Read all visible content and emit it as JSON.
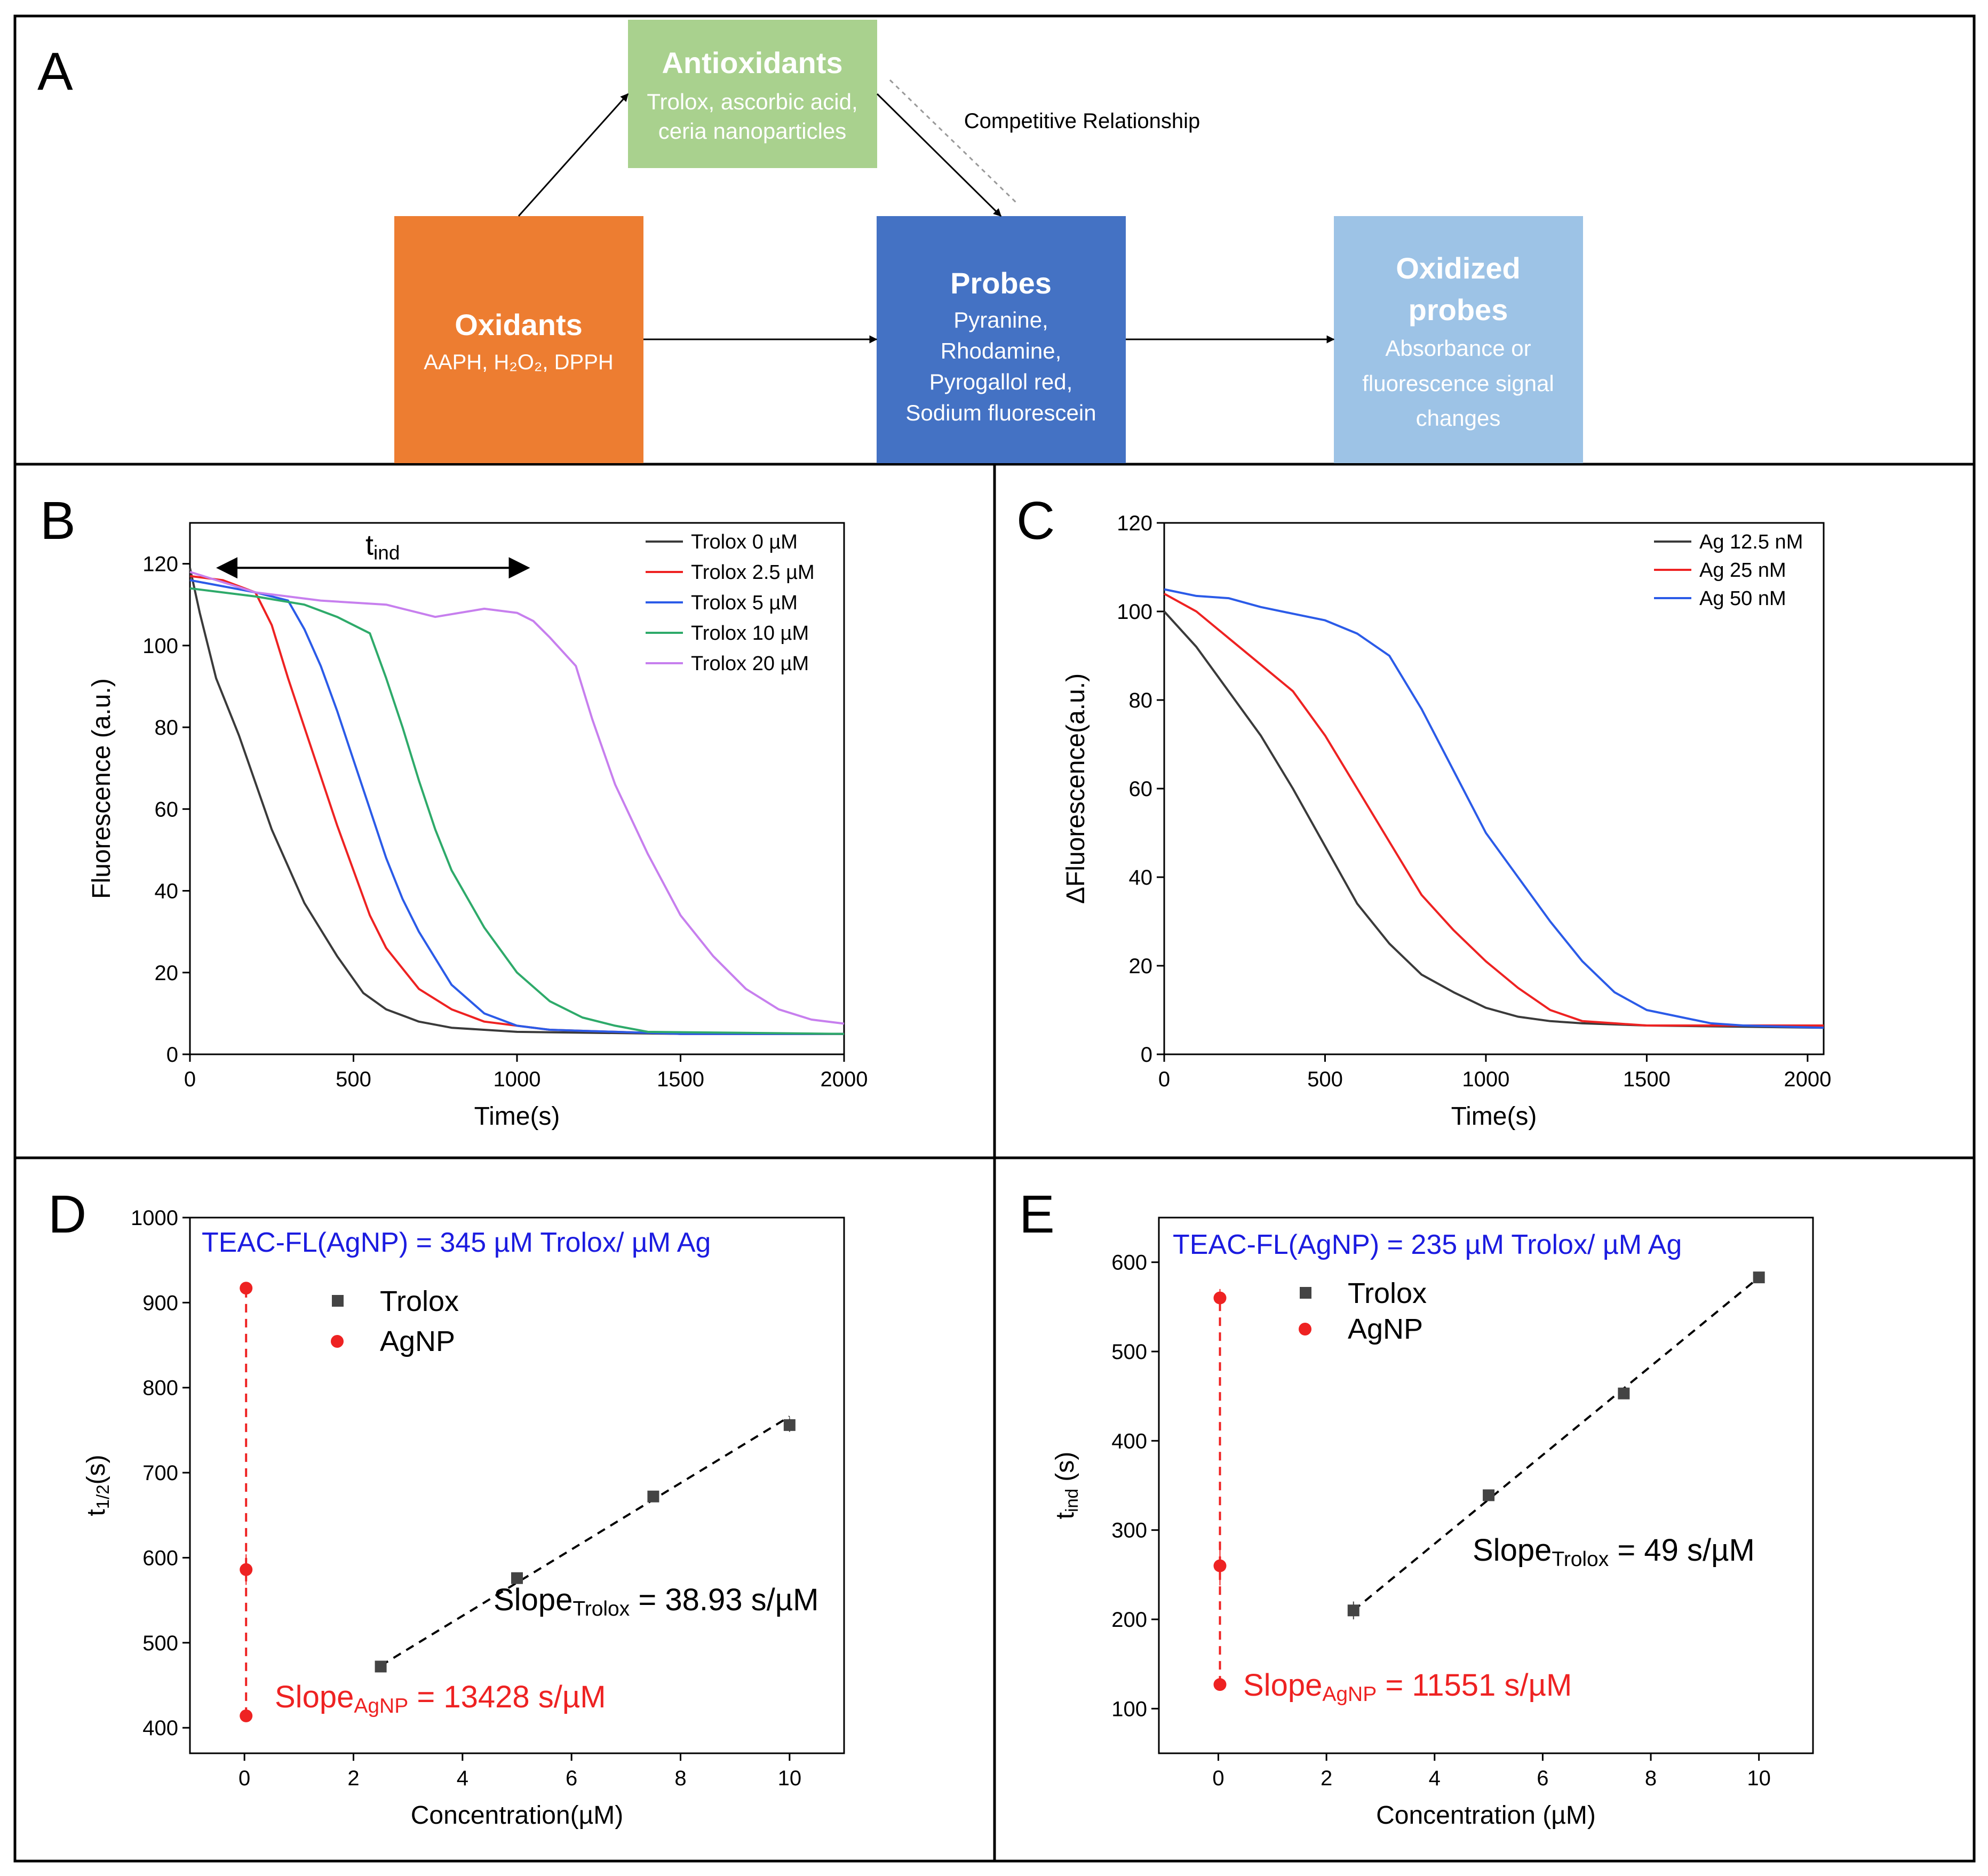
{
  "panel_letters": {
    "A": "A",
    "B": "B",
    "C": "C",
    "D": "D",
    "E": "E"
  },
  "colors": {
    "oxidants": "#ED7D31",
    "probes": "#4472C4",
    "antioxidants": "#A9D18E",
    "oxidized": "#9DC3E6",
    "black": "#3a3a3a",
    "red": "#EE2222",
    "blue": "#2B5BE8",
    "green": "#2EAA6A",
    "purple": "#C77FEE",
    "note_blue": "#1B1BE0"
  },
  "diagram": {
    "antioxidants": {
      "title": "Antioxidants",
      "line1": "Trolox, ascorbic acid,",
      "line2": "ceria nanoparticles"
    },
    "oxidants": {
      "title": "Oxidants",
      "sub": "AAPH, H₂O₂, DPPH"
    },
    "probes": {
      "title": "Probes",
      "line1": "Pyranine,",
      "line2": "Rhodamine,",
      "line3": "Pyrogallol red,",
      "line4": "Sodium fluorescein"
    },
    "oxidized": {
      "title1": "Oxidized",
      "title2": "probes",
      "line1": "Absorbance or",
      "line2": "fluorescence signal",
      "line3": "changes"
    },
    "competitive_label": "Competitive Relationship"
  },
  "chart_data": [
    {
      "id": "B",
      "type": "line",
      "xlabel": "Time(s)",
      "ylabel": "Fluorescence (a.u.)",
      "xlim": [
        0,
        2000
      ],
      "ylim": [
        0,
        130
      ],
      "xticks": [
        0,
        500,
        1000,
        1500,
        2000
      ],
      "yticks": [
        0,
        20,
        40,
        60,
        80,
        100,
        120
      ],
      "annotation": {
        "text": "t",
        "sub": "ind",
        "from": 80,
        "to": 1040,
        "y": 119
      },
      "series": [
        {
          "name": "Trolox 0 µM",
          "color": "#3a3a3a",
          "points": [
            [
              0,
              119
            ],
            [
              30,
              108
            ],
            [
              80,
              92
            ],
            [
              150,
              78
            ],
            [
              250,
              55
            ],
            [
              350,
              37
            ],
            [
              450,
              24
            ],
            [
              530,
              15
            ],
            [
              600,
              11
            ],
            [
              700,
              8
            ],
            [
              800,
              6.5
            ],
            [
              1000,
              5.5
            ],
            [
              1500,
              5
            ],
            [
              2000,
              5
            ]
          ]
        },
        {
          "name": "Trolox 2.5 µM",
          "color": "#EE2222",
          "points": [
            [
              0,
              117
            ],
            [
              100,
              116
            ],
            [
              200,
              113
            ],
            [
              250,
              105
            ],
            [
              300,
              92
            ],
            [
              350,
              80
            ],
            [
              400,
              68
            ],
            [
              450,
              56
            ],
            [
              500,
              45
            ],
            [
              550,
              34
            ],
            [
              600,
              26
            ],
            [
              700,
              16
            ],
            [
              800,
              11
            ],
            [
              900,
              8
            ],
            [
              1000,
              7
            ],
            [
              1100,
              6
            ],
            [
              1500,
              5
            ],
            [
              2000,
              5
            ]
          ]
        },
        {
          "name": "Trolox 5 µM",
          "color": "#2B5BE8",
          "points": [
            [
              0,
              116
            ],
            [
              200,
              113
            ],
            [
              300,
              111
            ],
            [
              350,
              104
            ],
            [
              400,
              95
            ],
            [
              450,
              84
            ],
            [
              500,
              72
            ],
            [
              550,
              60
            ],
            [
              600,
              48
            ],
            [
              650,
              38
            ],
            [
              700,
              30
            ],
            [
              800,
              17
            ],
            [
              900,
              10
            ],
            [
              1000,
              7
            ],
            [
              1100,
              6
            ],
            [
              1500,
              5
            ],
            [
              2000,
              5
            ]
          ]
        },
        {
          "name": "Trolox 10 µM",
          "color": "#2EAA6A",
          "points": [
            [
              0,
              114
            ],
            [
              200,
              112
            ],
            [
              350,
              110
            ],
            [
              450,
              107
            ],
            [
              550,
              103
            ],
            [
              600,
              92
            ],
            [
              650,
              80
            ],
            [
              700,
              67
            ],
            [
              750,
              55
            ],
            [
              800,
              45
            ],
            [
              900,
              31
            ],
            [
              1000,
              20
            ],
            [
              1100,
              13
            ],
            [
              1200,
              9
            ],
            [
              1300,
              7
            ],
            [
              1400,
              5.5
            ],
            [
              2000,
              5
            ]
          ]
        },
        {
          "name": "Trolox 20 µM",
          "color": "#C77FEE",
          "points": [
            [
              0,
              118
            ],
            [
              200,
              113
            ],
            [
              400,
              111
            ],
            [
              600,
              110
            ],
            [
              750,
              107
            ],
            [
              900,
              109
            ],
            [
              1000,
              108
            ],
            [
              1050,
              106
            ],
            [
              1100,
              102
            ],
            [
              1180,
              95
            ],
            [
              1230,
              82
            ],
            [
              1300,
              66
            ],
            [
              1400,
              49
            ],
            [
              1500,
              34
            ],
            [
              1600,
              24
            ],
            [
              1700,
              16
            ],
            [
              1800,
              11
            ],
            [
              1900,
              8.5
            ],
            [
              2000,
              7.5
            ]
          ]
        }
      ]
    },
    {
      "id": "C",
      "type": "line",
      "xlabel": "Time(s)",
      "ylabel": "ΔFluorescence(a.u.)",
      "xlim": [
        0,
        2050
      ],
      "ylim": [
        0,
        120
      ],
      "xticks": [
        0,
        500,
        1000,
        1500,
        2000
      ],
      "yticks": [
        0,
        20,
        40,
        60,
        80,
        100,
        120
      ],
      "series": [
        {
          "name": "Ag 12.5 nM",
          "color": "#3a3a3a",
          "points": [
            [
              0,
              100
            ],
            [
              100,
              92
            ],
            [
              200,
              82
            ],
            [
              300,
              72
            ],
            [
              400,
              60
            ],
            [
              500,
              47
            ],
            [
              600,
              34
            ],
            [
              700,
              25
            ],
            [
              800,
              18
            ],
            [
              900,
              14
            ],
            [
              1000,
              10.5
            ],
            [
              1100,
              8.5
            ],
            [
              1200,
              7.5
            ],
            [
              1300,
              7
            ],
            [
              1500,
              6.5
            ],
            [
              2050,
              6
            ]
          ]
        },
        {
          "name": "Ag 25 nM",
          "color": "#EE2222",
          "points": [
            [
              0,
              104
            ],
            [
              100,
              100
            ],
            [
              200,
              94
            ],
            [
              300,
              88
            ],
            [
              400,
              82
            ],
            [
              500,
              72
            ],
            [
              600,
              60
            ],
            [
              700,
              48
            ],
            [
              800,
              36
            ],
            [
              900,
              28
            ],
            [
              1000,
              21
            ],
            [
              1100,
              15
            ],
            [
              1200,
              10
            ],
            [
              1300,
              7.5
            ],
            [
              1400,
              7
            ],
            [
              1500,
              6.5
            ],
            [
              2050,
              6.5
            ]
          ]
        },
        {
          "name": "Ag 50 nM",
          "color": "#2B5BE8",
          "points": [
            [
              0,
              105
            ],
            [
              100,
              103.5
            ],
            [
              200,
              103
            ],
            [
              300,
              101
            ],
            [
              400,
              99.5
            ],
            [
              500,
              98
            ],
            [
              600,
              95
            ],
            [
              700,
              90
            ],
            [
              800,
              78
            ],
            [
              900,
              64
            ],
            [
              1000,
              50
            ],
            [
              1100,
              40
            ],
            [
              1200,
              30
            ],
            [
              1300,
              21
            ],
            [
              1400,
              14
            ],
            [
              1500,
              10
            ],
            [
              1600,
              8.5
            ],
            [
              1700,
              7
            ],
            [
              1800,
              6.5
            ],
            [
              2050,
              6
            ]
          ]
        }
      ]
    },
    {
      "id": "D",
      "type": "scatter",
      "xlabel": "Concentration(µM)",
      "ylabel": "t",
      "ylabel_sub": "1/2",
      "ylabel_tail": "(s)",
      "xlim": [
        -1,
        11
      ],
      "ylim": [
        370,
        1000
      ],
      "xticks": [
        0,
        2,
        4,
        6,
        8,
        10
      ],
      "yticks": [
        400,
        500,
        600,
        700,
        800,
        900,
        1000
      ],
      "header": "TEAC-FL(AgNP) = 345 µM Trolox/ µM Ag",
      "legend": [
        "Trolox",
        "AgNP"
      ],
      "trolox": {
        "x": [
          2.5,
          5,
          7.5,
          10
        ],
        "y": [
          472,
          576,
          672,
          756
        ],
        "err": [
          6,
          5,
          6,
          8
        ]
      },
      "agnp": {
        "x": [
          0.03,
          0.03,
          0.03
        ],
        "y": [
          414,
          586,
          917
        ],
        "err": [
          6,
          18,
          6
        ]
      },
      "fit": {
        "x0": 2.5,
        "x1": 10,
        "y0": 473,
        "y1": 766
      },
      "slope_trolox": {
        "label": "Slope",
        "sub": "Trolox",
        "tail": " = 38.93 s/µM"
      },
      "slope_agnp": {
        "label": "Slope",
        "sub": "AgNP",
        "tail": " = 13428 s/µM"
      }
    },
    {
      "id": "E",
      "type": "scatter",
      "xlabel": "Concentration (µM)",
      "ylabel": "t",
      "ylabel_sub": "ind",
      "ylabel_tail": " (s)",
      "xlim": [
        -1.1,
        11
      ],
      "ylim": [
        50,
        650
      ],
      "xticks": [
        0,
        2,
        4,
        6,
        8,
        10
      ],
      "yticks": [
        100,
        200,
        300,
        400,
        500,
        600
      ],
      "header": "TEAC-FL(AgNP) = 235 µM Trolox/ µM Ag",
      "legend": [
        "Trolox",
        "AgNP"
      ],
      "trolox": {
        "x": [
          2.5,
          5,
          7.5,
          10
        ],
        "y": [
          210,
          339,
          453,
          583
        ],
        "err": [
          10,
          5,
          5,
          6
        ]
      },
      "agnp": {
        "x": [
          0.03,
          0.03,
          0.03
        ],
        "y": [
          127,
          260,
          560
        ],
        "err": [
          5,
          22,
          10
        ]
      },
      "fit": {
        "x0": 2.5,
        "x1": 10,
        "y0": 210,
        "y1": 583
      },
      "slope_trolox": {
        "label": "Slope",
        "sub": "Trolox",
        "tail": " = 49 s/µM"
      },
      "slope_agnp": {
        "label": "Slope",
        "sub": "AgNP",
        "tail": " = 11551 s/µM"
      }
    }
  ]
}
